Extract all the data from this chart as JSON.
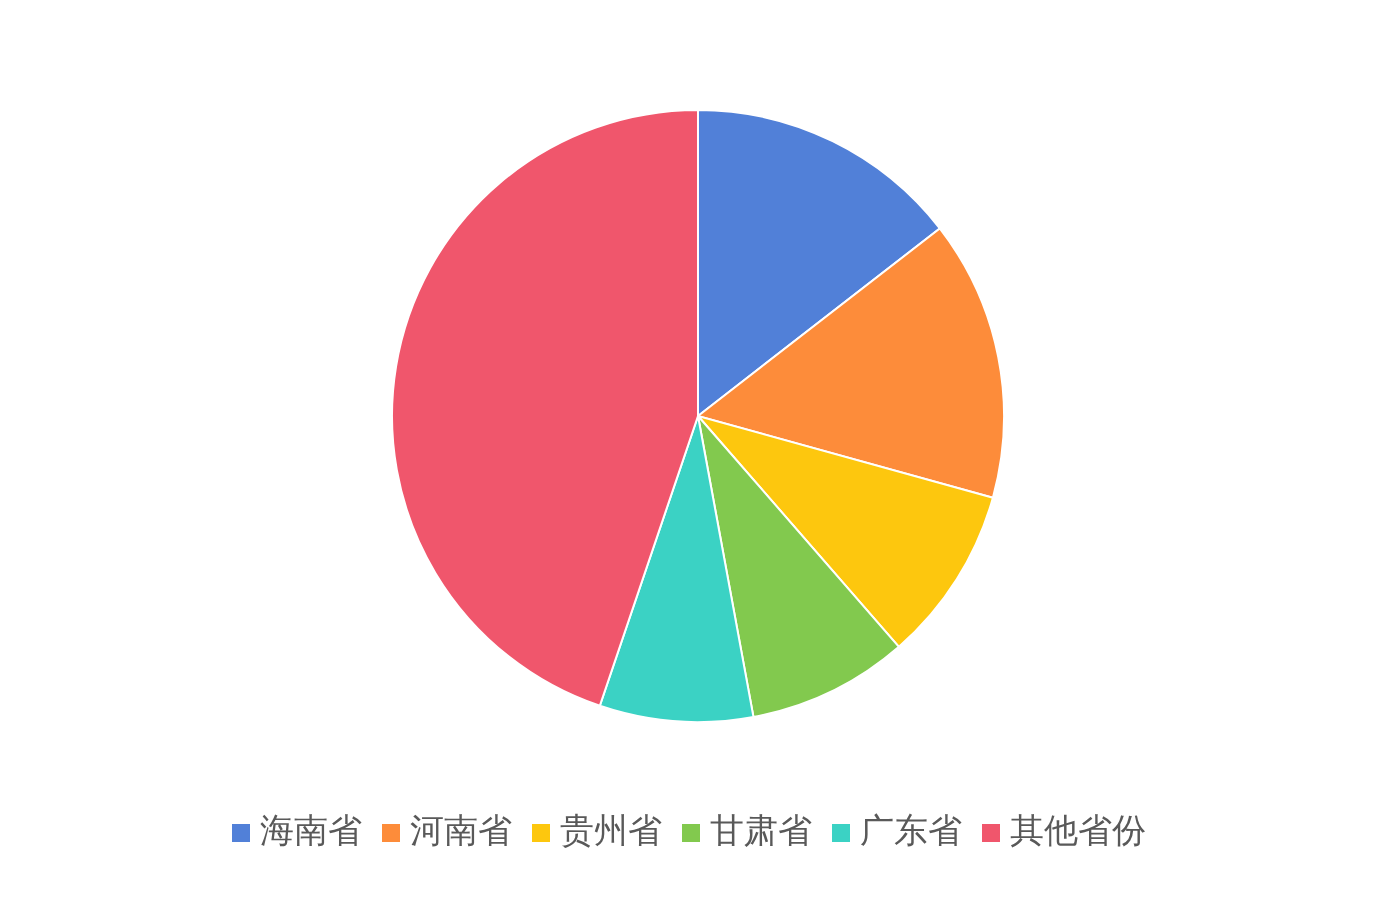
{
  "chart_data": {
    "type": "pie",
    "categories": [
      "海南省",
      "河南省",
      "贵州省",
      "甘肃省",
      "广东省",
      "其他省份"
    ],
    "values": [
      14.5,
      14.8,
      9.3,
      8.5,
      8.1,
      44.8
    ],
    "colors": [
      "#5180d8",
      "#fd8c3a",
      "#fdc70e",
      "#82c94e",
      "#3bd2c4",
      "#f0566c"
    ],
    "legend": "bottom"
  }
}
